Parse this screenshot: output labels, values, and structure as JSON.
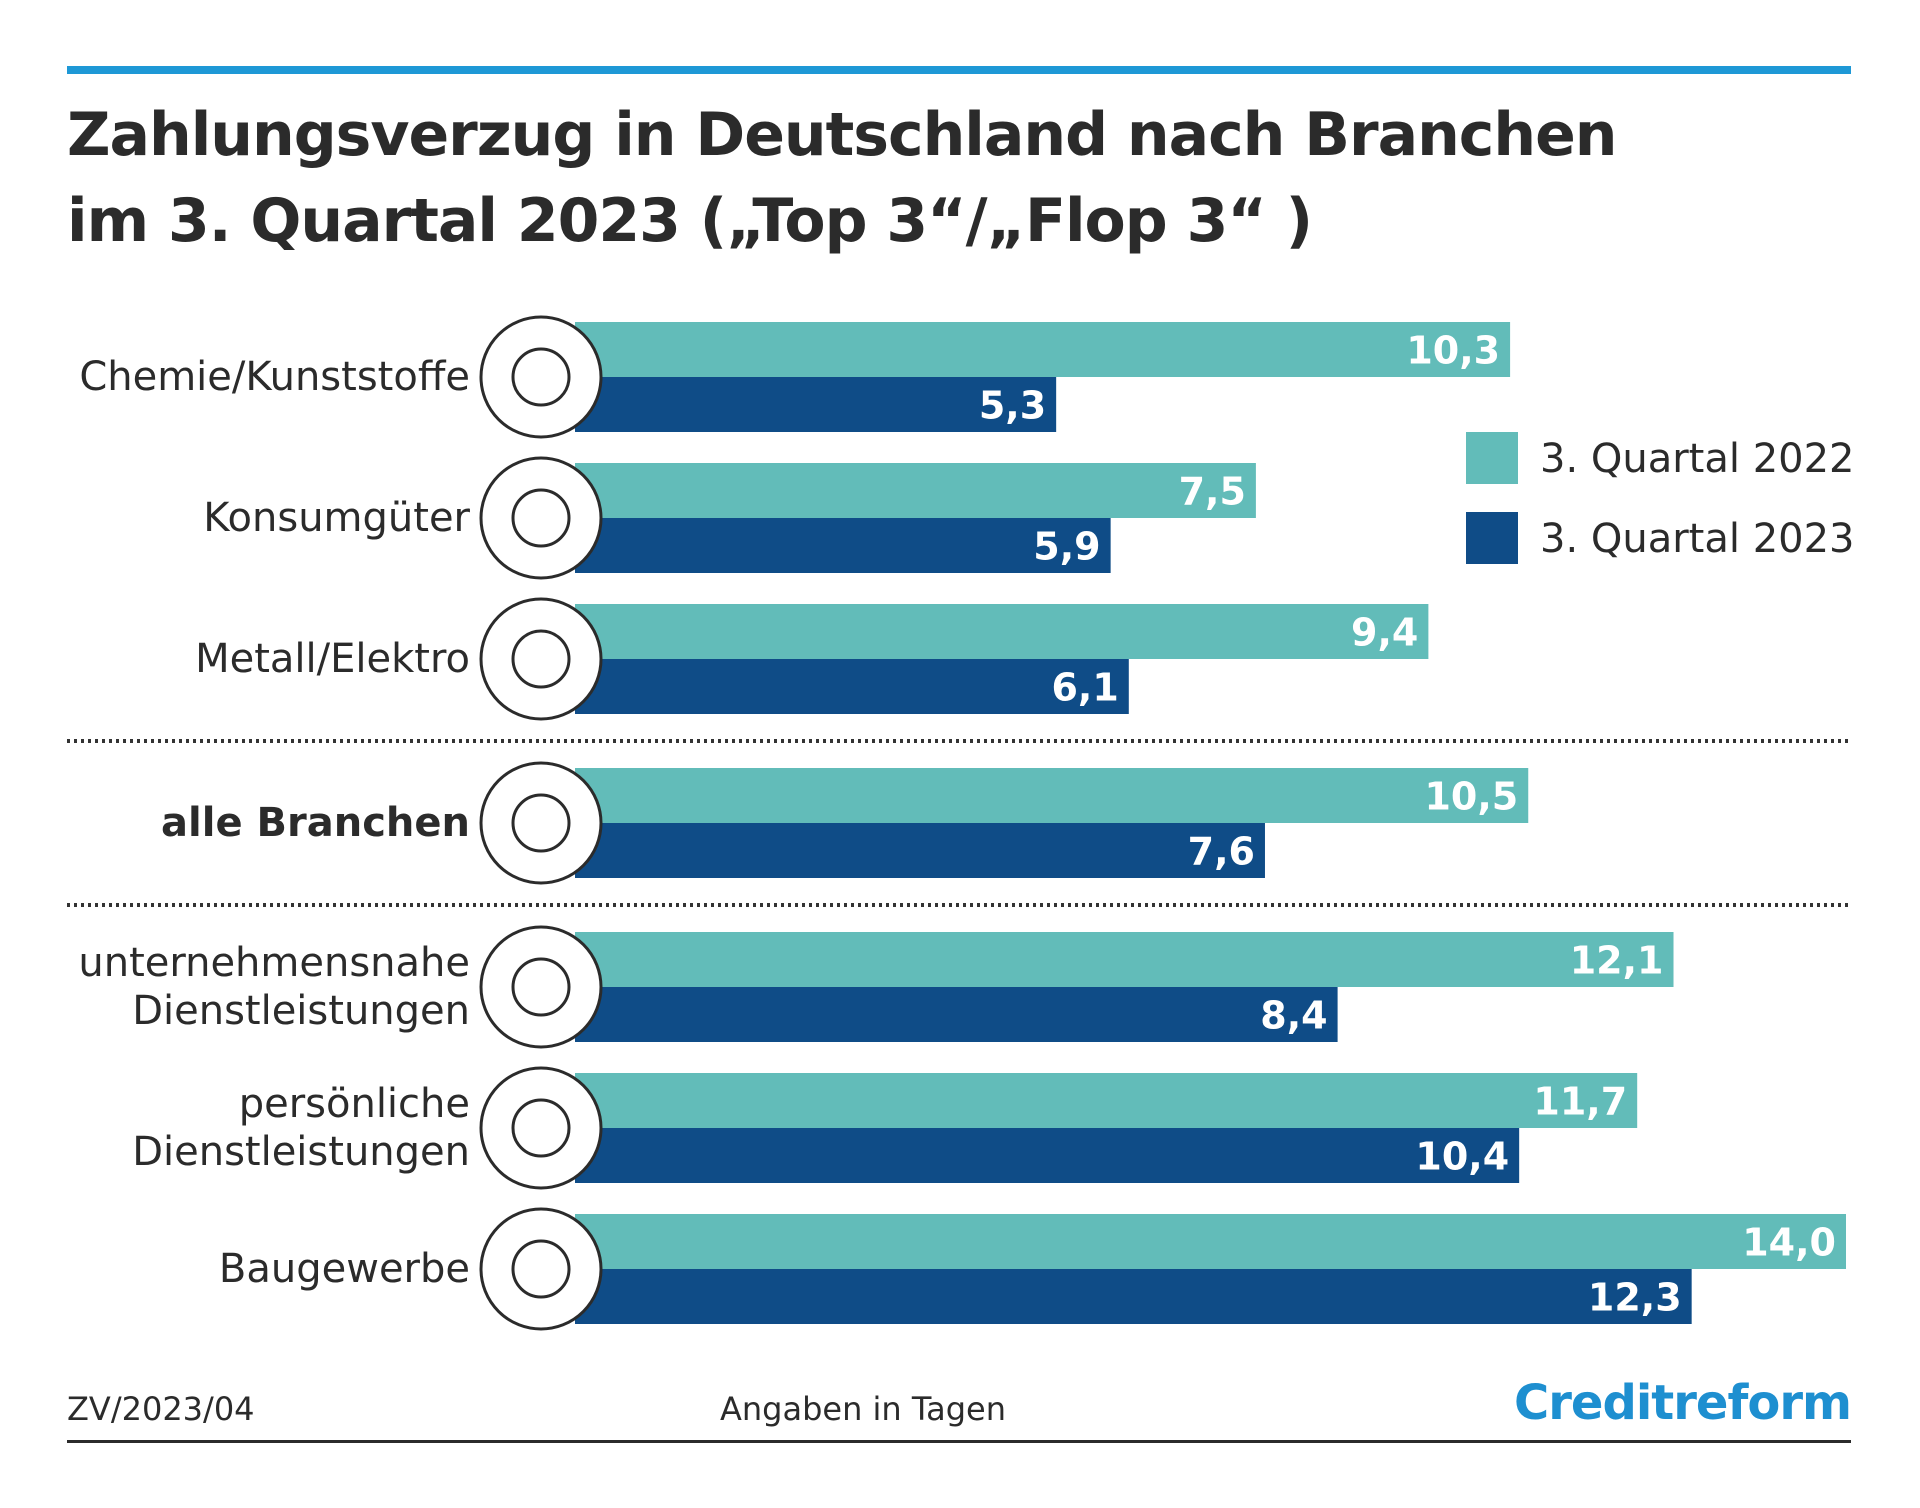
{
  "chart_data": {
    "type": "bar",
    "orientation": "horizontal",
    "title": [
      "Zahlungsverzug in Deutschland nach Branchen",
      "im 3. Quartal 2023 („Top 3“/„Flop 3“ )"
    ],
    "categories": [
      "Chemie/Kunststoffe",
      "Konsumgüter",
      "Metall/Elektro",
      "alle Branchen",
      "unternehmensnahe Dienstleistungen",
      "persönliche Dienstleistungen",
      "Baugewerbe"
    ],
    "highlight_index": 3,
    "separators_after": [
      2,
      3
    ],
    "series": [
      {
        "name": "3. Quartal 2022",
        "color": "#62bcb9",
        "values": [
          10.3,
          7.5,
          9.4,
          10.5,
          12.1,
          11.7,
          14.0
        ],
        "value_labels": [
          "10,3",
          "7,5",
          "9,4",
          "10,5",
          "12,1",
          "11,7",
          "14,0"
        ]
      },
      {
        "name": "3. Quartal 2023",
        "color": "#0f4c87",
        "values": [
          5.3,
          5.9,
          6.1,
          7.6,
          8.4,
          10.4,
          12.3
        ],
        "value_labels": [
          "5,3",
          "5,9",
          "6,1",
          "7,6",
          "8,4",
          "10,4",
          "12,3"
        ]
      }
    ],
    "xlim": [
      0,
      14
    ],
    "legend": "top-right",
    "source": "ZV/2023/04",
    "note": "Angaben in Tagen",
    "brand": "Creditreform"
  }
}
